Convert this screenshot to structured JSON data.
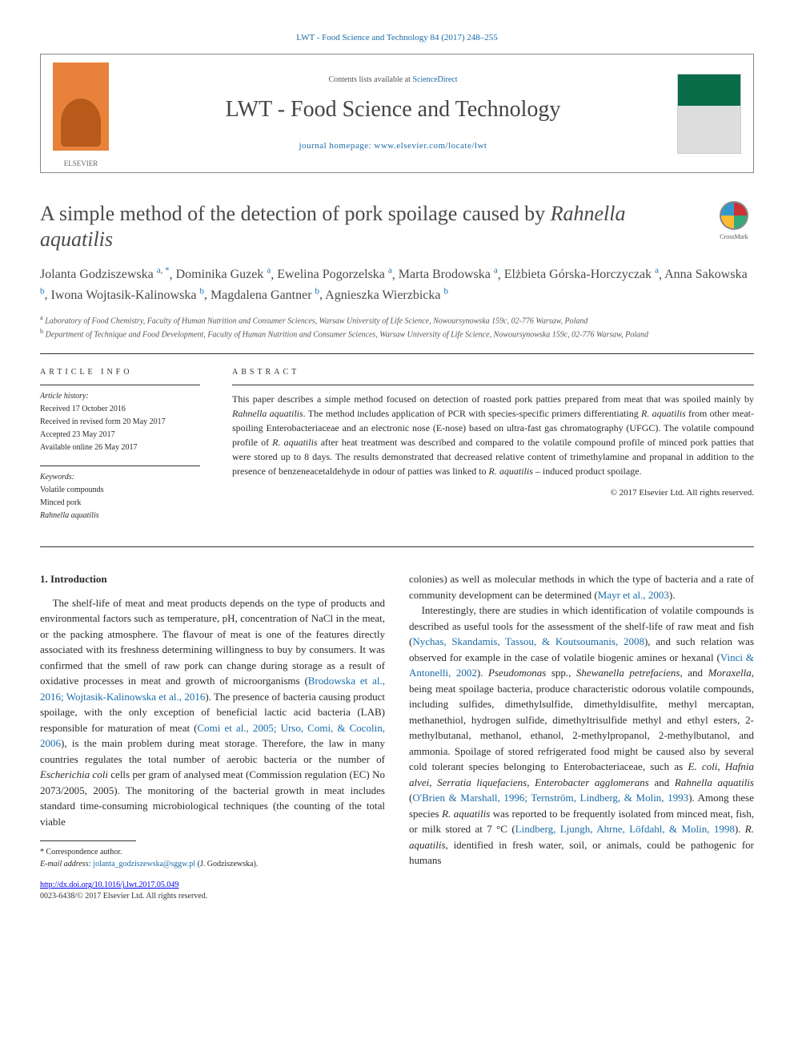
{
  "citation": "LWT - Food Science and Technology 84 (2017) 248–255",
  "header": {
    "contents_prefix": "Contents lists available at ",
    "contents_link": "ScienceDirect",
    "journal_name": "LWT - Food Science and Technology",
    "homepage_prefix": "journal homepage: ",
    "homepage_url": "www.elsevier.com/locate/lwt",
    "publisher_label": "ELSEVIER"
  },
  "crossmark_label": "CrossMark",
  "title_pre": "A simple method of the detection of pork spoilage caused by ",
  "title_em": "Rahnella aquatilis",
  "authors": [
    {
      "name": "Jolanta Godziszewska",
      "sup": "a, *"
    },
    {
      "name": "Dominika Guzek",
      "sup": "a"
    },
    {
      "name": "Ewelina Pogorzelska",
      "sup": "a"
    },
    {
      "name": "Marta Brodowska",
      "sup": "a"
    },
    {
      "name": "Elżbieta Górska-Horczyczak",
      "sup": "a"
    },
    {
      "name": "Anna Sakowska",
      "sup": "b"
    },
    {
      "name": "Iwona Wojtasik-Kalinowska",
      "sup": "b"
    },
    {
      "name": "Magdalena Gantner",
      "sup": "b"
    },
    {
      "name": "Agnieszka Wierzbicka",
      "sup": "b"
    }
  ],
  "affiliations": {
    "a": "Laboratory of Food Chemistry, Faculty of Human Nutrition and Consumer Sciences, Warsaw University of Life Science, Nowoursynowska 159c, 02-776 Warsaw, Poland",
    "b": "Department of Technique and Food Development, Faculty of Human Nutrition and Consumer Sciences, Warsaw University of Life Science, Nowoursynowska 159c, 02-776 Warsaw, Poland"
  },
  "article_info_heading": "ARTICLE INFO",
  "history": {
    "label": "Article history:",
    "received": "Received 17 October 2016",
    "revised": "Received in revised form 20 May 2017",
    "accepted": "Accepted 23 May 2017",
    "online": "Available online 26 May 2017"
  },
  "keywords": {
    "label": "Keywords:",
    "items": [
      "Volatile compounds",
      "Minced pork",
      "Rahnella aquatilis"
    ]
  },
  "abstract_heading": "ABSTRACT",
  "abstract_body_1": "This paper describes a simple method focused on detection of roasted pork patties prepared from meat that was spoiled mainly by ",
  "abstract_em_1": "Rahnella aquatilis",
  "abstract_body_2": ". The method includes application of PCR with species-specific primers differentiating ",
  "abstract_em_2": "R. aquatilis",
  "abstract_body_3": " from other meat-spoiling Enterobacteriaceae and an electronic nose (E-nose) based on ultra-fast gas chromatography (UFGC). The volatile compound profile of ",
  "abstract_em_3": "R. aquatilis",
  "abstract_body_4": " after heat treatment was described and compared to the volatile compound profile of minced pork patties that were stored up to 8 days. The results demonstrated that decreased relative content of trimethylamine and propanal in addition to the presence of benzeneacetaldehyde in odour of patties was linked to ",
  "abstract_em_4": "R. aquatilis",
  "abstract_body_5": " – induced product spoilage.",
  "copyright": "© 2017 Elsevier Ltd. All rights reserved.",
  "section1_heading": "1. Introduction",
  "col1": {
    "p1a": "The shelf-life of meat and meat products depends on the type of products and environmental factors such as temperature, pH, concentration of NaCl in the meat, or the packing atmosphere. The flavour of meat is one of the features directly associated with its freshness determining willingness to buy by consumers. It was confirmed that the smell of raw pork can change during storage as a result of oxidative processes in meat and growth of microorganisms (",
    "ref1": "Brodowska et al., 2016; Wojtasik-Kalinowska et al., 2016",
    "p1b": "). The presence of bacteria causing product spoilage, with the only exception of beneficial lactic acid bacteria (LAB) responsible for maturation of meat (",
    "ref2": "Comi et al., 2005; Urso, Comi, & Cocolin, 2006",
    "p1c": "), is the main problem during meat storage. Therefore, the law in many countries regulates the total number of aerobic bacteria or the number of ",
    "em1": "Escherichia coli",
    "p1d": " cells per gram of analysed meat (Commission regulation (EC) No 2073/2005, 2005). The monitoring of the bacterial growth in meat includes standard time-consuming microbiological techniques (the counting of the total viable"
  },
  "col2": {
    "p1a": "colonies) as well as molecular methods in which the type of bacteria and a rate of community development can be determined (",
    "ref1": "Mayr et al., 2003",
    "p1b": ").",
    "p2a": "Interestingly, there are studies in which identification of volatile compounds is described as useful tools for the assessment of the shelf-life of raw meat and fish (",
    "ref2": "Nychas, Skandamis, Tassou, & Koutsoumanis, 2008",
    "p2b": "), and such relation was observed for example in the case of volatile biogenic amines or hexanal (",
    "ref3": "Vinci & Antonelli, 2002",
    "p2c": "). ",
    "em1": "Pseudomonas",
    "p2d": " spp., ",
    "em2": "Shewanella petrefaciens",
    "p2e": ", and ",
    "em3": "Moraxella",
    "p2f": ", being meat spoilage bacteria, produce characteristic odorous volatile compounds, including sulfides, dimethylsulfide, dimethyldisulfite, methyl mercaptan, methanethiol, hydrogen sulfide, dimethyltrisulfide methyl and ethyl esters, 2-methylbutanal, methanol, ethanol, 2-methylpropanol, 2-methylbutanol, and ammonia. Spoilage of stored refrigerated food might be caused also by several cold tolerant species belonging to Enterobacteriaceae, such as ",
    "em4": "E. coli, Hafnia alvei, Serratia liquefaciens, Enterobacter agglomerans",
    "p2g": " and ",
    "em5": "Rahnella aquatilis",
    "p2h": " (",
    "ref4": "O'Brien & Marshall, 1996; Ternström, Lindberg, & Molin, 1993",
    "p2i": "). Among these species ",
    "em6": "R. aquatilis",
    "p2j": " was reported to be frequently isolated from minced meat, fish, or milk stored at 7 °C (",
    "ref5": "Lindberg, Ljungh, Ahrne, Löfdahl, & Molin, 1998",
    "p2k": "). ",
    "em7": "R. aquatilis",
    "p2l": ", identified in fresh water, soil, or animals, could be pathogenic for humans"
  },
  "footnotes": {
    "corr": "* Correspondence author.",
    "email_label": "E-mail address: ",
    "email": "jolanta_godziszewska@sggw.pl",
    "email_suffix": " (J. Godziszewska)."
  },
  "doi": "http://dx.doi.org/10.1016/j.lwt.2017.05.049",
  "issn": "0023-6438/© 2017 Elsevier Ltd. All rights reserved.",
  "colors": {
    "link": "#1a6ba8",
    "text": "#2a2a2a",
    "elsevier_orange": "#e8823a",
    "cover_green": "#0a6d4a"
  }
}
